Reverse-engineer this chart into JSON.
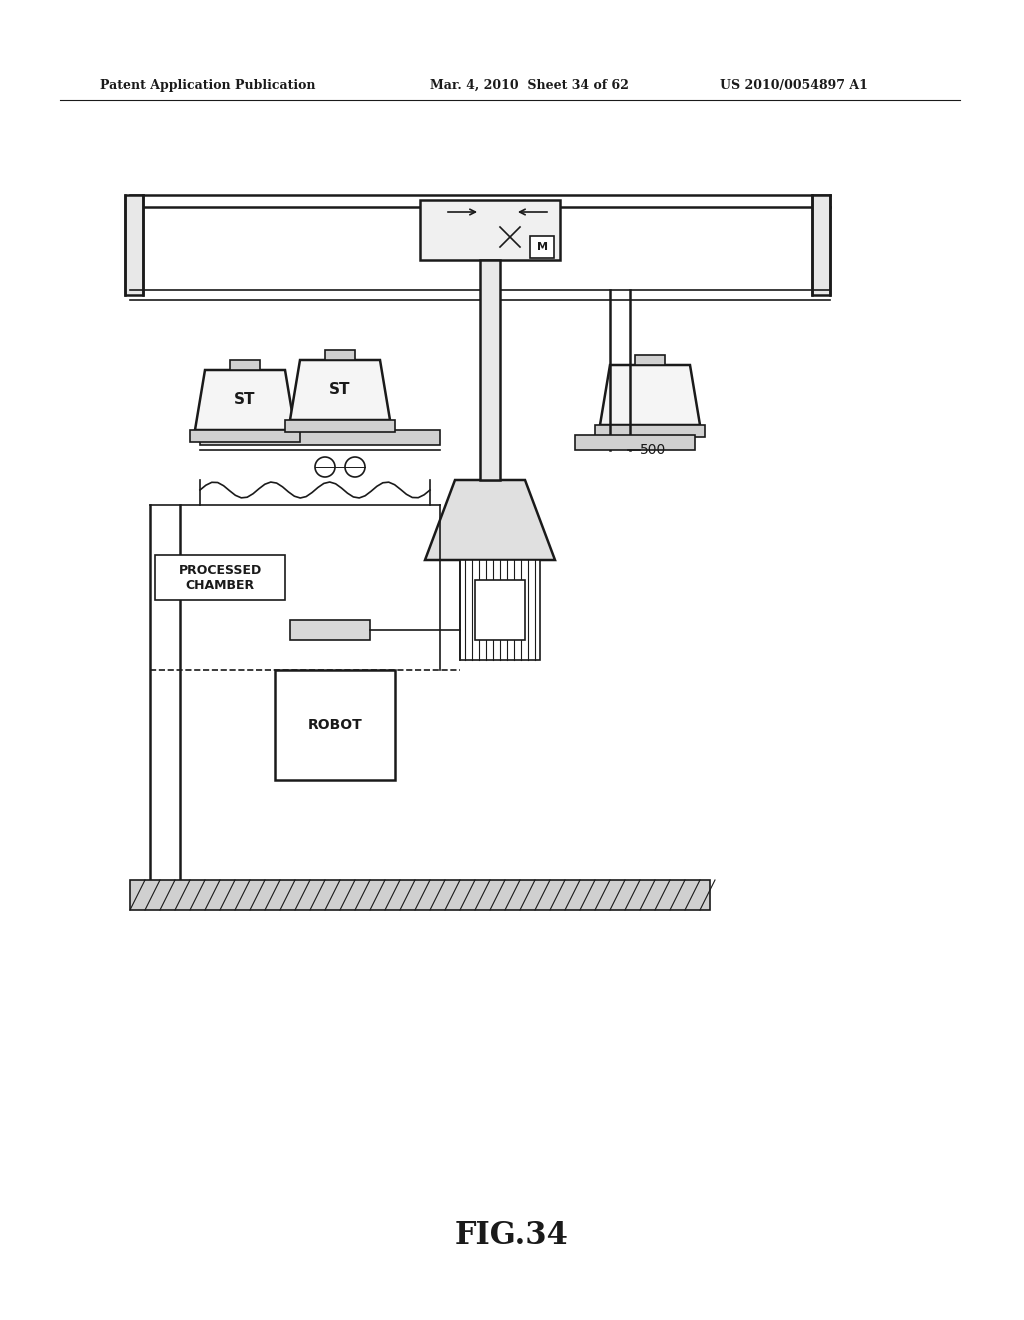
{
  "bg_color": "#ffffff",
  "line_color": "#1a1a1a",
  "header_left": "Patent Application Publication",
  "header_mid": "Mar. 4, 2010  Sheet 34 of 62",
  "header_right": "US 2010/0054897 A1",
  "fig_label": "FIG.34",
  "label_500": "500",
  "label_processed_chamber": "PROCESSED\nCHAMBER",
  "label_robot": "ROBOT",
  "label_st1": "ST",
  "label_st2": "ST",
  "label_M": "M"
}
